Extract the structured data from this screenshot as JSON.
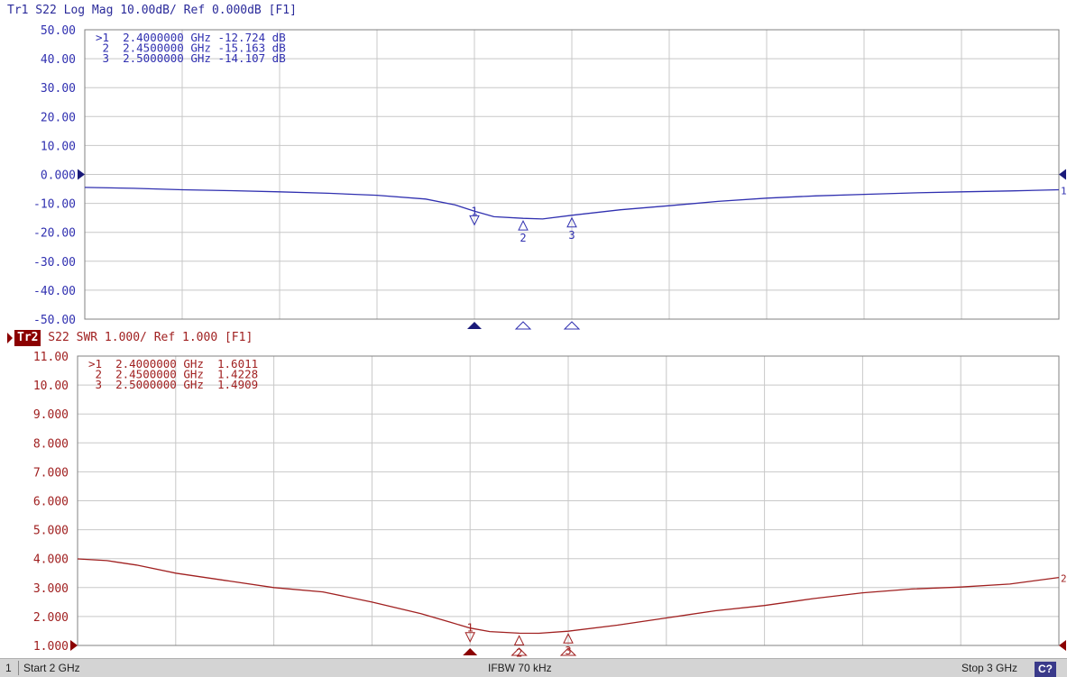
{
  "trace1": {
    "header": "Tr1 S22 Log Mag 10.00dB/ Ref 0.000dB [F1]",
    "color": "#3030b0",
    "markers": [
      {
        "line": ">1  2.4000000 GHz -12.724 dB"
      },
      {
        "line": " 2  2.4500000 GHz -15.163 dB"
      },
      {
        "line": " 3  2.5000000 GHz -14.107 dB"
      }
    ]
  },
  "trace2": {
    "label": "Tr2",
    "header": " S22 SWR 1.000/ Ref 1.000 [F1]",
    "color": "#a02020",
    "markers": [
      {
        "line": ">1  2.4000000 GHz  1.6011"
      },
      {
        "line": " 2  2.4500000 GHz  1.4228"
      },
      {
        "line": " 3  2.5000000 GHz  1.4909"
      }
    ]
  },
  "status": {
    "channel": "1",
    "start": "Start 2 GHz",
    "ifbw": "IFBW 70 kHz",
    "stop": "Stop 3 GHz",
    "c_label": "C?"
  },
  "chart_data": [
    {
      "type": "line",
      "title": "Tr1 S22 Log Mag 10.00dB/ Ref 0.000dB [F1]",
      "xlim": [
        2.0,
        3.0
      ],
      "ylim": [
        -50,
        50
      ],
      "y_ticks": [
        "50.00",
        "40.00",
        "30.00",
        "20.00",
        "10.00",
        "0.000",
        "-10.00",
        "-20.00",
        "-30.00",
        "-40.00",
        "-50.00"
      ],
      "grid": true,
      "series": [
        {
          "x": [
            2.0,
            2.05,
            2.1,
            2.15,
            2.2,
            2.25,
            2.3,
            2.35,
            2.38,
            2.4,
            2.42,
            2.45,
            2.47,
            2.5,
            2.55,
            2.6,
            2.65,
            2.7,
            2.75,
            2.8,
            2.85,
            2.9,
            2.95,
            3.0
          ],
          "y": [
            -4.5,
            -4.8,
            -5.3,
            -5.6,
            -6.0,
            -6.5,
            -7.2,
            -8.5,
            -10.5,
            -12.724,
            -14.6,
            -15.163,
            -15.4,
            -14.107,
            -12.2,
            -10.8,
            -9.3,
            -8.2,
            -7.4,
            -6.9,
            -6.4,
            -6.0,
            -5.7,
            -5.3
          ]
        }
      ],
      "markers": [
        {
          "id": "1",
          "x": 2.4,
          "y": -12.724
        },
        {
          "id": "2",
          "x": 2.45,
          "y": -15.163
        },
        {
          "id": "3",
          "x": 2.5,
          "y": -14.107
        }
      ]
    },
    {
      "type": "line",
      "title": "Tr2 S22 SWR 1.000/ Ref 1.000 [F1]",
      "xlim": [
        2.0,
        3.0
      ],
      "ylim": [
        1.0,
        11.0
      ],
      "y_ticks": [
        "11.00",
        "10.00",
        "9.000",
        "8.000",
        "7.000",
        "6.000",
        "5.000",
        "4.000",
        "3.000",
        "2.000",
        "1.000"
      ],
      "grid": true,
      "series": [
        {
          "x": [
            2.0,
            2.03,
            2.06,
            2.1,
            2.15,
            2.2,
            2.25,
            2.3,
            2.35,
            2.38,
            2.4,
            2.42,
            2.45,
            2.47,
            2.5,
            2.55,
            2.6,
            2.65,
            2.7,
            2.75,
            2.8,
            2.85,
            2.9,
            2.95,
            3.0
          ],
          "y": [
            3.99,
            3.93,
            3.78,
            3.5,
            3.25,
            3.0,
            2.85,
            2.5,
            2.1,
            1.8,
            1.6011,
            1.48,
            1.4228,
            1.42,
            1.4909,
            1.7,
            1.95,
            2.2,
            2.38,
            2.62,
            2.82,
            2.95,
            3.02,
            3.12,
            3.35
          ]
        }
      ],
      "markers": [
        {
          "id": "1",
          "x": 2.4,
          "y": 1.6011
        },
        {
          "id": "2",
          "x": 2.45,
          "y": 1.4228
        },
        {
          "id": "3",
          "x": 2.5,
          "y": 1.4909
        }
      ]
    }
  ]
}
